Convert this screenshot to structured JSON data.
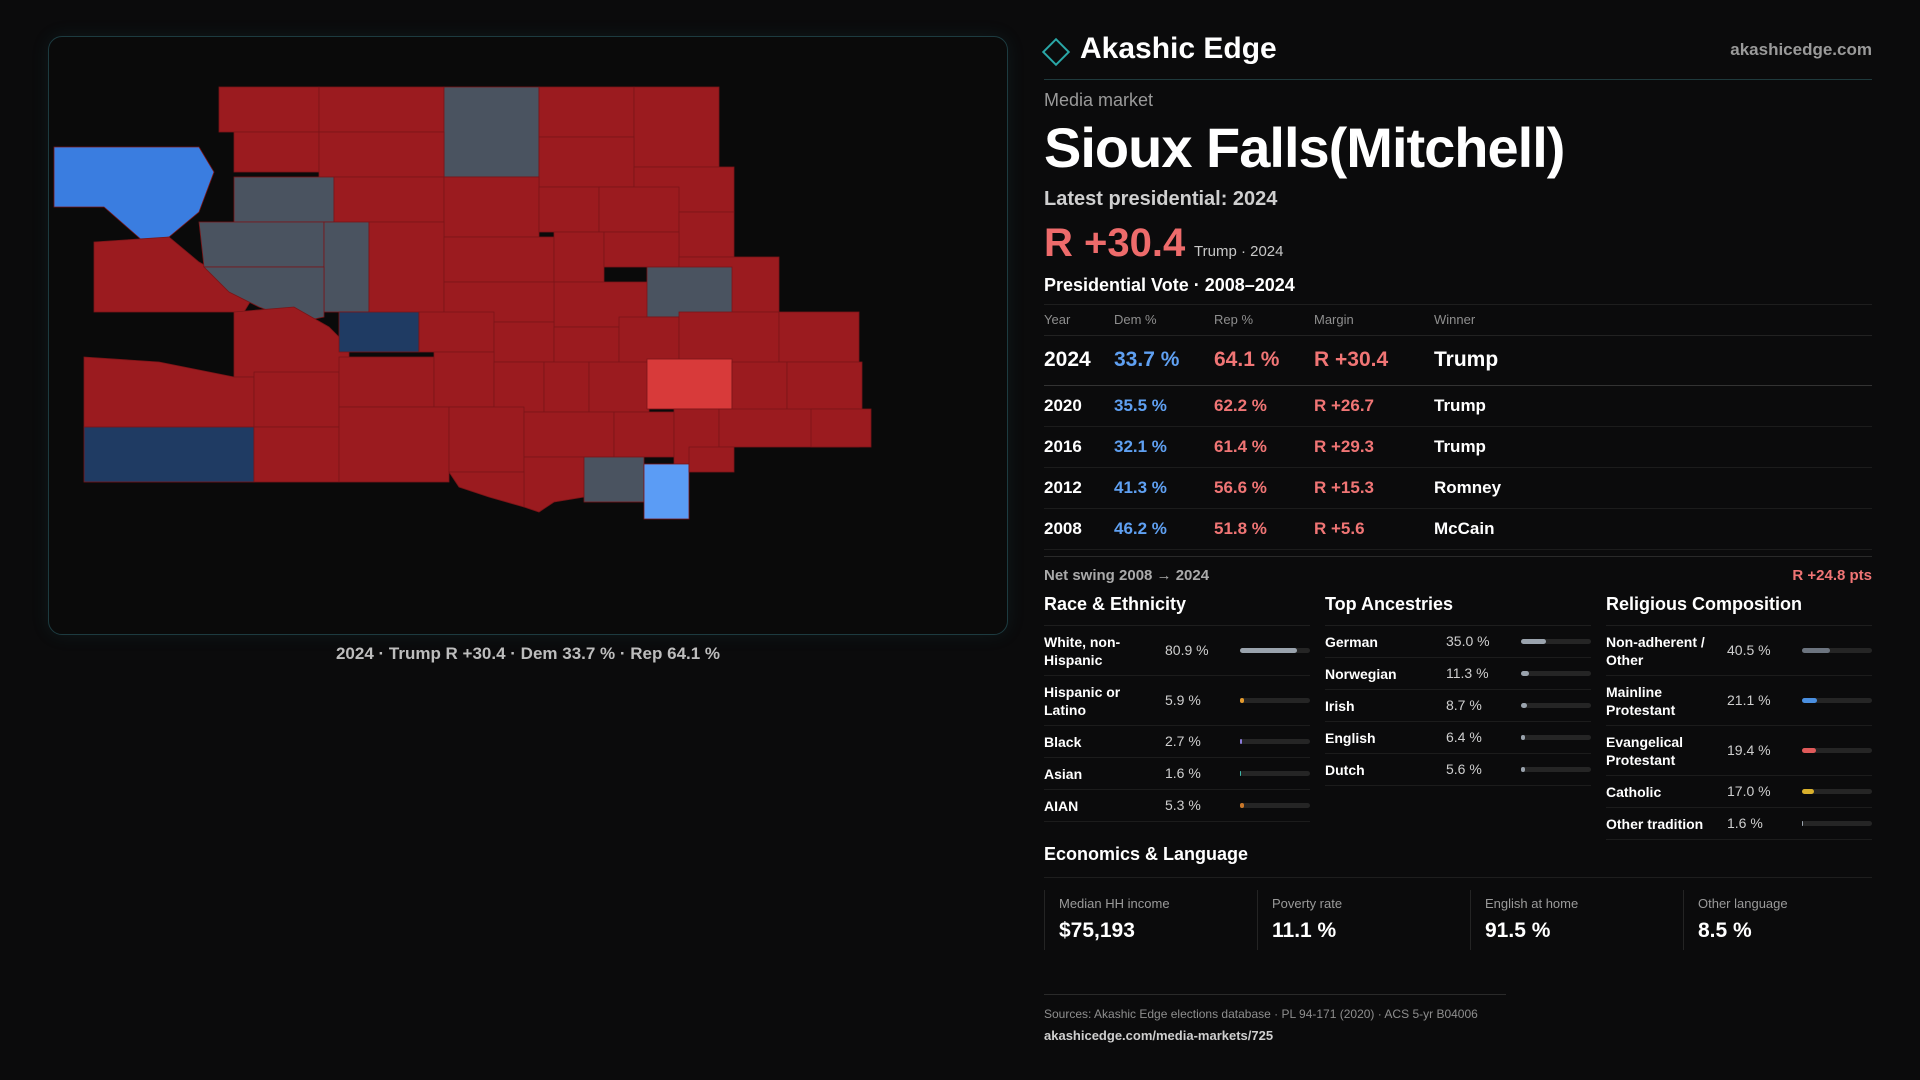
{
  "brand": {
    "name": "Akashic Edge",
    "url": "akashicedge.com"
  },
  "kicker": "Media market",
  "title": "Sioux Falls(Mitchell)",
  "latest_label": "Latest presidential: 2024",
  "headline_margin": "R +30.4",
  "headline_sub": "Trump · 2024",
  "map_caption": "2024 · Trump R +30.4 · Dem 33.7 % · Rep 64.1 %",
  "map_colors": {
    "strong_rep": "#9b1b1f",
    "lean_rep": "#d83a3a",
    "strong_dem": "#1f3b63",
    "lean_dem": "#3a7de0",
    "light_dem": "#5b9cf5",
    "no_data": "#4a5360"
  },
  "vote_table": {
    "title": "Presidential Vote · 2008–2024",
    "headers": [
      "Year",
      "Dem %",
      "Rep %",
      "Margin",
      "Winner"
    ],
    "rows": [
      {
        "year": "2024",
        "dem": "33.7 %",
        "rep": "64.1 %",
        "margin": "R +30.4",
        "winner": "Trump"
      },
      {
        "year": "2020",
        "dem": "35.5 %",
        "rep": "62.2 %",
        "margin": "R +26.7",
        "winner": "Trump"
      },
      {
        "year": "2016",
        "dem": "32.1 %",
        "rep": "61.4 %",
        "margin": "R +29.3",
        "winner": "Trump"
      },
      {
        "year": "2012",
        "dem": "41.3 %",
        "rep": "56.6 %",
        "margin": "R +15.3",
        "winner": "Romney"
      },
      {
        "year": "2008",
        "dem": "46.2 %",
        "rep": "51.8 %",
        "margin": "R +5.6",
        "winner": "McCain"
      }
    ]
  },
  "swing": {
    "label": "Net swing 2008 → 2024",
    "value": "R +24.8 pts"
  },
  "race": {
    "title": "Race & Ethnicity",
    "items": [
      {
        "label": "White, non-Hispanic",
        "pct": "80.9 %",
        "value": 80.9,
        "color": "#9aa3ad"
      },
      {
        "label": "Hispanic or Latino",
        "pct": "5.9 %",
        "value": 5.9,
        "color": "#e39a2e"
      },
      {
        "label": "Black",
        "pct": "2.7 %",
        "value": 2.7,
        "color": "#8a7ad8"
      },
      {
        "label": "Asian",
        "pct": "1.6 %",
        "value": 1.6,
        "color": "#3fb6a8"
      },
      {
        "label": "AIAN",
        "pct": "5.3 %",
        "value": 5.3,
        "color": "#c8772a"
      }
    ]
  },
  "ancestry": {
    "title": "Top Ancestries",
    "items": [
      {
        "label": "German",
        "pct": "35.0 %",
        "value": 35.0,
        "color": "#9aa3ad"
      },
      {
        "label": "Norwegian",
        "pct": "11.3 %",
        "value": 11.3,
        "color": "#9aa3ad"
      },
      {
        "label": "Irish",
        "pct": "8.7 %",
        "value": 8.7,
        "color": "#9aa3ad"
      },
      {
        "label": "English",
        "pct": "6.4 %",
        "value": 6.4,
        "color": "#9aa3ad"
      },
      {
        "label": "Dutch",
        "pct": "5.6 %",
        "value": 5.6,
        "color": "#9aa3ad"
      }
    ]
  },
  "religion": {
    "title": "Religious Composition",
    "items": [
      {
        "label": "Non-adherent / Other",
        "pct": "40.5 %",
        "value": 40.5,
        "color": "#6c747f"
      },
      {
        "label": "Mainline Protestant",
        "pct": "21.1 %",
        "value": 21.1,
        "color": "#4a8fe0"
      },
      {
        "label": "Evangelical Protestant",
        "pct": "19.4 %",
        "value": 19.4,
        "color": "#e05a5a"
      },
      {
        "label": "Catholic",
        "pct": "17.0 %",
        "value": 17.0,
        "color": "#d9b02c"
      },
      {
        "label": "Other tradition",
        "pct": "1.6 %",
        "value": 1.6,
        "color": "#9aa3ad"
      }
    ]
  },
  "economics": {
    "title": "Economics & Language",
    "cells": [
      {
        "label": "Median HH income",
        "value": "$75,193"
      },
      {
        "label": "Poverty rate",
        "value": "11.1 %"
      },
      {
        "label": "English at home",
        "value": "91.5 %"
      },
      {
        "label": "Other language",
        "value": "8.5 %"
      }
    ]
  },
  "footer": {
    "sources": "Sources: Akashic Edge elections database · PL 94-171 (2020) · ACS 5-yr B04006",
    "url": "akashicedge.com/media-markets/725"
  }
}
